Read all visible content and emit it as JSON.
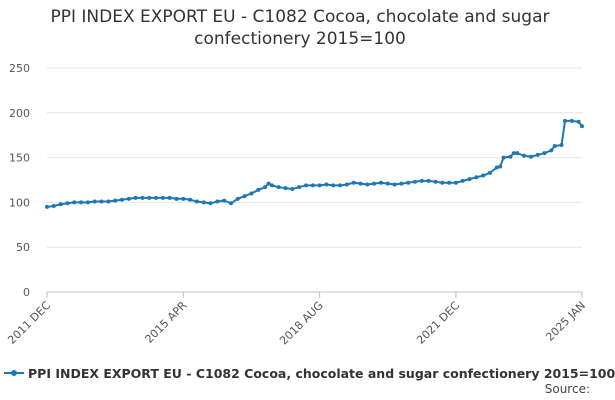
{
  "chart_data": {
    "type": "line",
    "title": "PPI INDEX EXPORT EU - C1082 Cocoa, chocolate and sugar confectionery 2015=100",
    "ylim": [
      0,
      250
    ],
    "yticks": [
      "0",
      "50",
      "100",
      "150",
      "200",
      "250"
    ],
    "xlim": [
      "2011-12",
      "2025-01"
    ],
    "xtick_labels": [
      {
        "date": "2011-12",
        "label": "2011 DEC"
      },
      {
        "date": "2015-04",
        "label": "2015 APR"
      },
      {
        "date": "2018-08",
        "label": "2018 AUG"
      },
      {
        "date": "2021-12",
        "label": "2021 DEC"
      },
      {
        "date": "2025-01",
        "label": "2025 JAN"
      }
    ],
    "grid": "horizontal",
    "legend_position": "bottom",
    "color": "#1f77b4",
    "series": [
      {
        "name": "PPI INDEX EXPORT EU - C1082 Cocoa, chocolate and sugar confectionery 2015=100",
        "points": [
          [
            "2011-12",
            95
          ],
          [
            "2012-02",
            96
          ],
          [
            "2012-04",
            98
          ],
          [
            "2012-06",
            99
          ],
          [
            "2012-08",
            100
          ],
          [
            "2012-10",
            100
          ],
          [
            "2012-12",
            100
          ],
          [
            "2013-02",
            101
          ],
          [
            "2013-04",
            101
          ],
          [
            "2013-06",
            101
          ],
          [
            "2013-08",
            102
          ],
          [
            "2013-10",
            103
          ],
          [
            "2013-12",
            104
          ],
          [
            "2014-02",
            105
          ],
          [
            "2014-04",
            105
          ],
          [
            "2014-06",
            105
          ],
          [
            "2014-08",
            105
          ],
          [
            "2014-10",
            105
          ],
          [
            "2014-12",
            105
          ],
          [
            "2015-02",
            104
          ],
          [
            "2015-04",
            104
          ],
          [
            "2015-06",
            103
          ],
          [
            "2015-08",
            101
          ],
          [
            "2015-10",
            100
          ],
          [
            "2015-12",
            99
          ],
          [
            "2016-02",
            101
          ],
          [
            "2016-04",
            102
          ],
          [
            "2016-06",
            99
          ],
          [
            "2016-08",
            104
          ],
          [
            "2016-10",
            107
          ],
          [
            "2016-12",
            110
          ],
          [
            "2017-02",
            114
          ],
          [
            "2017-04",
            117
          ],
          [
            "2017-05",
            121
          ],
          [
            "2017-06",
            119
          ],
          [
            "2017-08",
            117
          ],
          [
            "2017-10",
            116
          ],
          [
            "2017-12",
            115
          ],
          [
            "2018-02",
            117
          ],
          [
            "2018-04",
            119
          ],
          [
            "2018-06",
            119
          ],
          [
            "2018-08",
            119
          ],
          [
            "2018-10",
            120
          ],
          [
            "2018-12",
            119
          ],
          [
            "2019-02",
            119
          ],
          [
            "2019-04",
            120
          ],
          [
            "2019-06",
            122
          ],
          [
            "2019-08",
            121
          ],
          [
            "2019-10",
            120
          ],
          [
            "2019-12",
            121
          ],
          [
            "2020-02",
            122
          ],
          [
            "2020-04",
            121
          ],
          [
            "2020-06",
            120
          ],
          [
            "2020-08",
            121
          ],
          [
            "2020-10",
            122
          ],
          [
            "2020-12",
            123
          ],
          [
            "2021-02",
            124
          ],
          [
            "2021-04",
            124
          ],
          [
            "2021-06",
            123
          ],
          [
            "2021-08",
            122
          ],
          [
            "2021-10",
            122
          ],
          [
            "2021-12",
            122
          ],
          [
            "2022-02",
            124
          ],
          [
            "2022-04",
            126
          ],
          [
            "2022-06",
            128
          ],
          [
            "2022-08",
            130
          ],
          [
            "2022-10",
            133
          ],
          [
            "2022-12",
            139
          ],
          [
            "2023-01",
            140
          ],
          [
            "2023-02",
            150
          ],
          [
            "2023-04",
            151
          ],
          [
            "2023-05",
            155
          ],
          [
            "2023-06",
            155
          ],
          [
            "2023-08",
            152
          ],
          [
            "2023-10",
            151
          ],
          [
            "2023-12",
            153
          ],
          [
            "2024-02",
            155
          ],
          [
            "2024-04",
            158
          ],
          [
            "2024-05",
            163
          ],
          [
            "2024-07",
            164
          ],
          [
            "2024-08",
            191
          ],
          [
            "2024-10",
            191
          ],
          [
            "2024-12",
            190
          ],
          [
            "2025-01",
            185
          ]
        ]
      }
    ],
    "source_label": "Source:"
  }
}
